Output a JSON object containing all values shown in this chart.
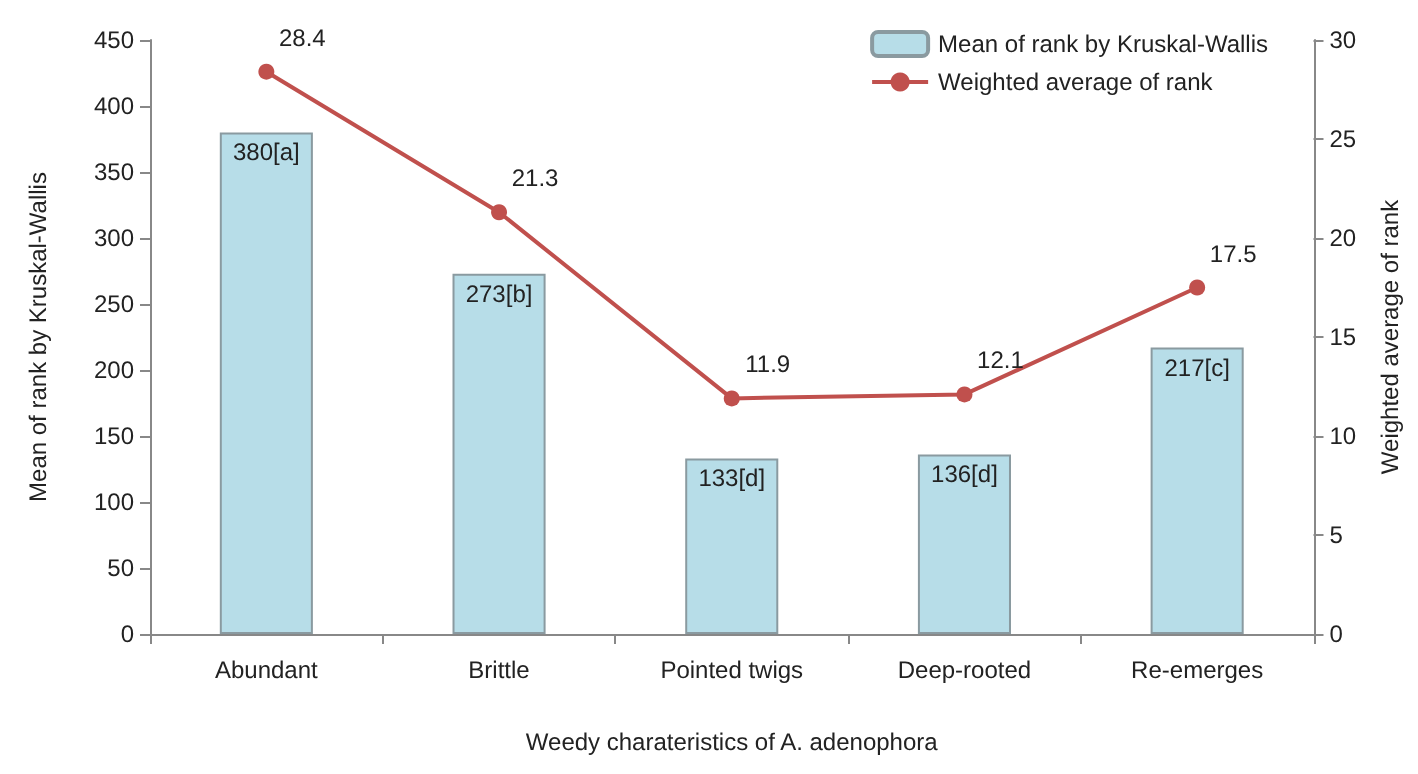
{
  "chart_data": {
    "type": "bar",
    "categories": [
      "Abundant",
      "Brittle",
      "Pointed twigs",
      "Deep-rooted",
      "Re-emerges"
    ],
    "xlabel": "Weedy charateristics of A. adenophora",
    "ylabel": "Mean of rank by Kruskal-Wallis",
    "y2label": "Weighted average of rank",
    "series": [
      {
        "name": "Mean of rank by Kruskal-Wallis",
        "color": "#b7dde8",
        "values": [
          380,
          273,
          133,
          136,
          217
        ],
        "value_labels": [
          "380[a]",
          "273[b]",
          "133[d]",
          "136[d]",
          "217[c]"
        ]
      },
      {
        "name": "Weighted average of rank",
        "type": "line",
        "axis": "y2",
        "color": "#c0504d",
        "values": [
          28.4,
          21.3,
          11.9,
          12.1,
          17.5
        ],
        "value_labels": [
          "28.4",
          "21.3",
          "11.9",
          "12.1",
          "17.5"
        ]
      }
    ],
    "ylim": [
      0,
      450
    ],
    "yticks": [
      0,
      50,
      100,
      150,
      200,
      250,
      300,
      350,
      400,
      450
    ],
    "y2lim": [
      0,
      30
    ],
    "y2ticks": [
      0,
      5,
      10,
      15,
      20,
      25,
      30
    ],
    "grid": false,
    "legend": "top right",
    "marker": "circle"
  }
}
